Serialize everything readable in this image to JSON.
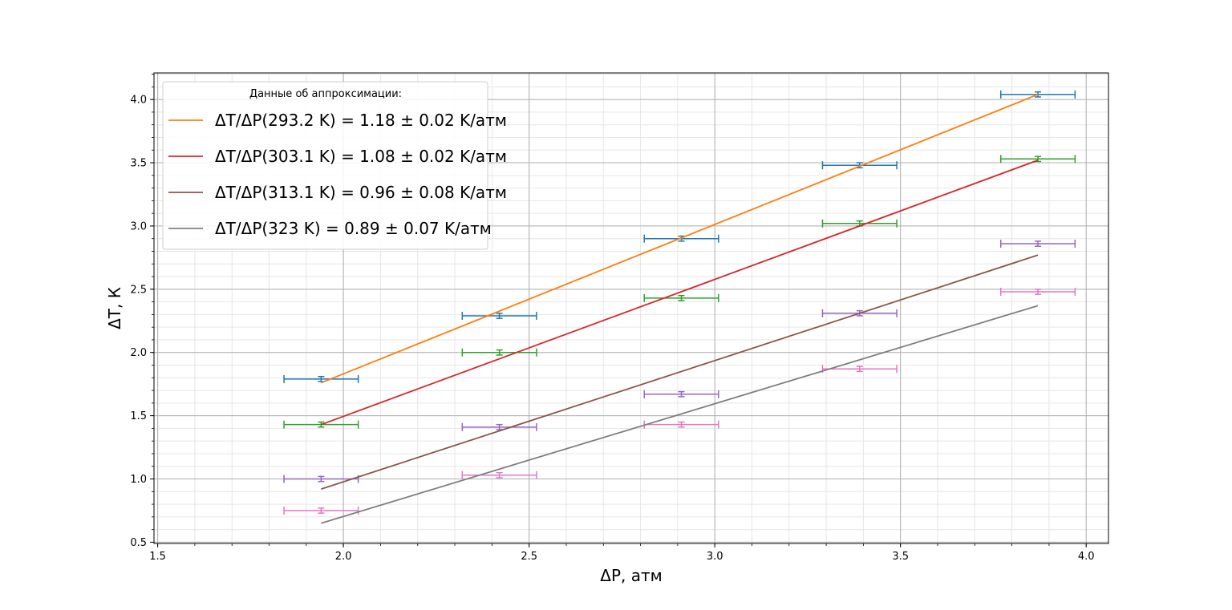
{
  "chart_data": {
    "type": "scatter",
    "xlabel": "ΔP, атм",
    "ylabel": "ΔT, К",
    "xlim": [
      1.49,
      4.06
    ],
    "ylim": [
      0.49,
      4.21
    ],
    "x_ticks": [
      "1.5",
      "2.0",
      "2.5",
      "3.0",
      "3.5",
      "4.0"
    ],
    "y_ticks": [
      "0.5",
      "1.0",
      "1.5",
      "2.0",
      "2.5",
      "3.0",
      "3.5",
      "4.0"
    ],
    "grid": true,
    "legend": {
      "placement": "top-left",
      "title": "Данные об аппроксимации:",
      "entries": [
        {
          "label": "ΔT/ΔP(293.2 K) = 1.18 ± 0.02 K/атм",
          "color": "#ff7f0e"
        },
        {
          "label": "ΔT/ΔP(303.1 K) = 1.08 ± 0.02 K/атм",
          "color": "#d62728"
        },
        {
          "label": "ΔT/ΔP(313.1 K) = 0.96 ± 0.08 K/атм",
          "color": "#8c564b"
        },
        {
          "label": "ΔT/ΔP(323 K) = 0.89 ± 0.07 K/атм",
          "color": "#7f7f7f"
        }
      ]
    },
    "series": [
      {
        "kind": "errorbar",
        "color": "#1f77b4",
        "x": [
          1.94,
          2.42,
          2.91,
          3.39,
          3.87
        ],
        "y": [
          1.79,
          2.29,
          2.9,
          3.48,
          4.04
        ],
        "xerr": 0.1,
        "yerr": 0.02
      },
      {
        "kind": "errorbar",
        "color": "#2ca02c",
        "x": [
          1.94,
          2.42,
          2.91,
          3.39,
          3.87
        ],
        "y": [
          1.43,
          2.0,
          2.43,
          3.02,
          3.53
        ],
        "xerr": 0.1,
        "yerr": 0.02
      },
      {
        "kind": "errorbar",
        "color": "#9467bd",
        "x": [
          1.94,
          2.42,
          2.91,
          3.39,
          3.87
        ],
        "y": [
          1.0,
          1.41,
          1.67,
          2.31,
          2.86
        ],
        "xerr": 0.1,
        "yerr": 0.02
      },
      {
        "kind": "errorbar",
        "color": "#e377c2",
        "x": [
          1.94,
          2.42,
          2.91,
          3.39,
          3.87
        ],
        "y": [
          0.75,
          1.03,
          1.43,
          1.87,
          2.48
        ],
        "xerr": 0.1,
        "yerr": 0.02
      },
      {
        "kind": "line",
        "color": "#ff7f0e",
        "x": [
          1.94,
          3.87
        ],
        "y": [
          1.76,
          4.04
        ]
      },
      {
        "kind": "line",
        "color": "#d62728",
        "x": [
          1.94,
          3.87
        ],
        "y": [
          1.43,
          3.52
        ]
      },
      {
        "kind": "line",
        "color": "#8c564b",
        "x": [
          1.94,
          3.87
        ],
        "y": [
          0.92,
          2.77
        ]
      },
      {
        "kind": "line",
        "color": "#7f7f7f",
        "x": [
          1.94,
          3.87
        ],
        "y": [
          0.65,
          2.37
        ]
      }
    ]
  }
}
